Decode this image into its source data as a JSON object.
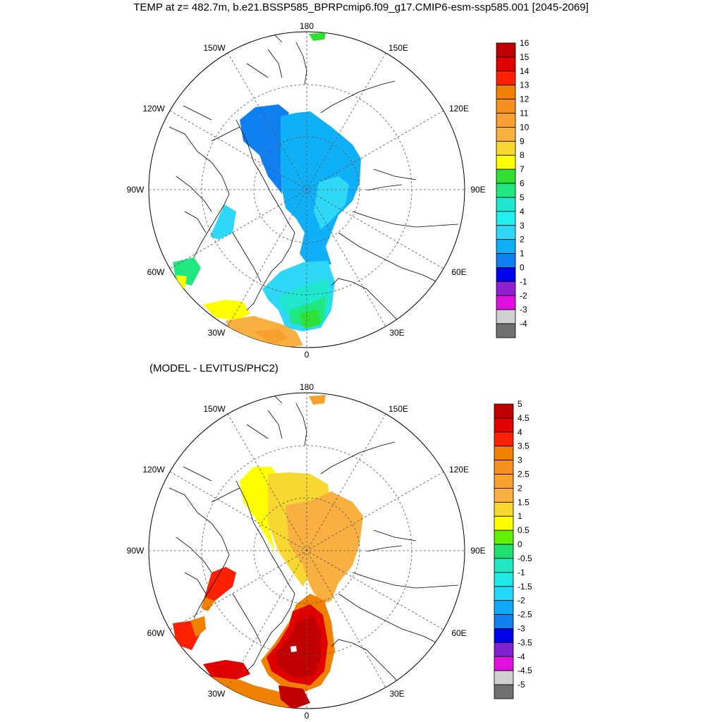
{
  "title": "TEMP at z= 482.7m, b.e21.BSSP585_BPRPcmip6.f09_g17.CMIP6-esm-ssp585.001 [2045-2069]",
  "subtitle": "(MODEL - LEVITUS/PHC2)",
  "longitude_labels": [
    "180",
    "150E",
    "120E",
    "90E",
    "60E",
    "30E",
    "0",
    "30W",
    "60W",
    "90W",
    "120W",
    "150W"
  ],
  "colors": {
    "land_outline": "#000000",
    "grid": "#555555",
    "ocean_fill": "#ffffff"
  },
  "top_colorbar": {
    "labels": [
      "16",
      "15",
      "14",
      "13",
      "12",
      "11",
      "10",
      "9",
      "8",
      "7",
      "6",
      "5",
      "4",
      "3",
      "2",
      "1",
      "0",
      "-1",
      "-2",
      "-3",
      "-4"
    ],
    "colors": [
      "#c00000",
      "#e00000",
      "#ff2000",
      "#f08000",
      "#f89020",
      "#f8a030",
      "#f8b040",
      "#f8d830",
      "#ffff00",
      "#30e030",
      "#20e880",
      "#20e8d0",
      "#20f0f0",
      "#30d8f8",
      "#10b0f8",
      "#1080f0",
      "#0000f0",
      "#9020d0",
      "#e010e0",
      "#d0d0d0",
      "#707070"
    ]
  },
  "bottom_colorbar": {
    "labels": [
      "5",
      "4.5",
      "4",
      "3.5",
      "3",
      "2.5",
      "2",
      "1.5",
      "1",
      "0.5",
      "0",
      "-0.5",
      "-1",
      "-1.5",
      "-2",
      "-2.5",
      "-3",
      "-3.5",
      "-4",
      "-4.5",
      "-5"
    ],
    "colors": [
      "#c00000",
      "#e00000",
      "#ff2000",
      "#f08000",
      "#f89020",
      "#f8a030",
      "#f8b040",
      "#f8d830",
      "#ffff00",
      "#60f000",
      "#20e070",
      "#20e8c0",
      "#20e8e8",
      "#20d8f8",
      "#10a8f8",
      "#1080f0",
      "#0000e8",
      "#8020d0",
      "#e010e0",
      "#d0d0d0",
      "#707070"
    ]
  }
}
